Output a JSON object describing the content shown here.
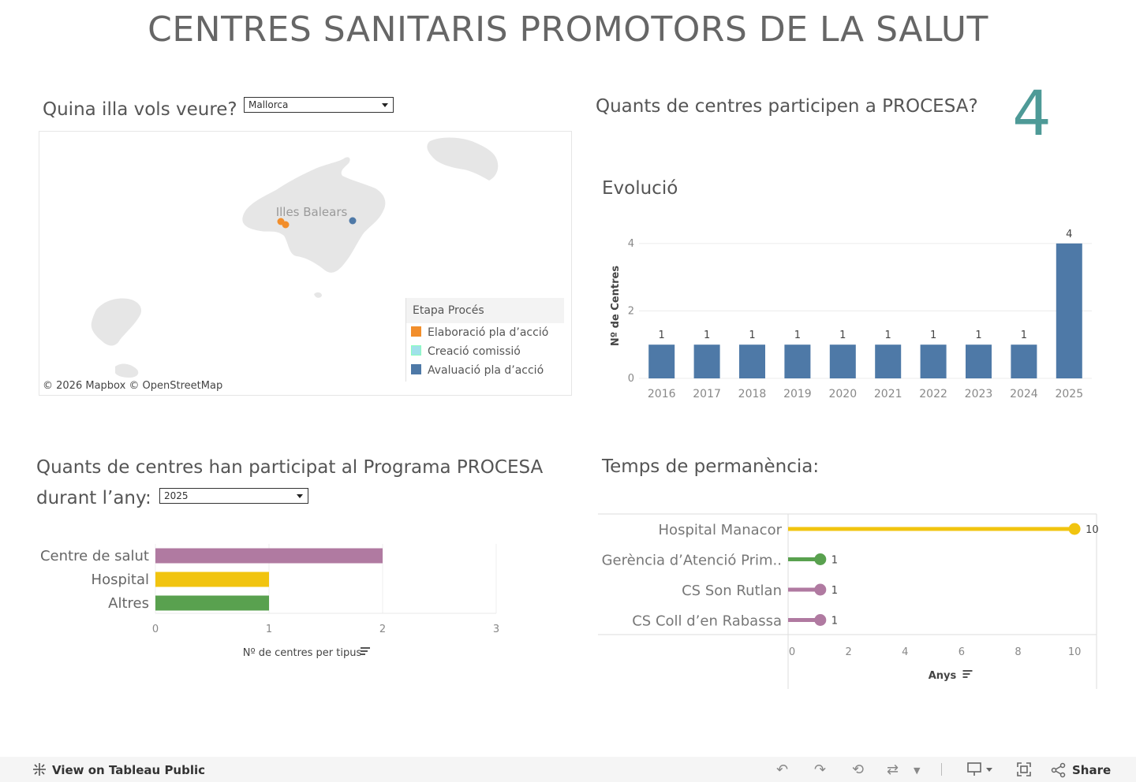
{
  "title": "CENTRES SANITARIS PROMOTORS DE LA SALUT",
  "island_filter": {
    "label": "Quina illa vols veure?",
    "selected": "Mallorca"
  },
  "map": {
    "place_label": "Illes Balears",
    "attribution": "© 2026 Mapbox  © OpenStreetMap",
    "legend": {
      "title": "Etapa Procés",
      "items": [
        {
          "label": "Elaboració pla d’acció",
          "color": "#f28e2b"
        },
        {
          "label": "Creació comissió",
          "color": "#a0e1ea"
        },
        {
          "label": "Avaluació pla d’acció",
          "color": "#4e79a7"
        }
      ]
    }
  },
  "count_kpi": {
    "question": "Quants de centres participen a PROCESA?",
    "value": "4",
    "color": "#4e9a97"
  },
  "evolucio": {
    "heading": "Evolució"
  },
  "participacio": {
    "heading_line1": "Quants de centres han participat al Programa PROCESA",
    "heading_line2": "durant l’any:",
    "year_selected": "2025"
  },
  "permanencia": {
    "heading": "Temps de permanència:"
  },
  "chart_data": [
    {
      "type": "bar",
      "title": "Evolució",
      "ylabel": "Nº de Centres",
      "xlabel": "",
      "categories": [
        "2016",
        "2017",
        "2018",
        "2019",
        "2020",
        "2021",
        "2022",
        "2023",
        "2024",
        "2025"
      ],
      "values": [
        1,
        1,
        1,
        1,
        1,
        1,
        1,
        1,
        1,
        4
      ],
      "y_ticks": [
        "0",
        "2",
        "4"
      ],
      "ylim": [
        0,
        4.3
      ],
      "color": "#4e79a7",
      "grid": true
    },
    {
      "type": "bar",
      "orientation": "horizontal",
      "categories": [
        "Centre de salut",
        "Hospital",
        "Altres"
      ],
      "values": [
        2,
        1,
        1
      ],
      "colors": [
        "#b07aa1",
        "#f1c40f",
        "#59a14f"
      ],
      "xlabel": "Nº de centres per tipus",
      "x_ticks": [
        "0",
        "1",
        "2",
        "3"
      ],
      "xlim": [
        0,
        3
      ],
      "grid": true
    },
    {
      "type": "bar",
      "style": "lollipop",
      "orientation": "horizontal",
      "categories": [
        "Hospital Manacor",
        "Gerència d’Atenció Prim..",
        "CS Son Rutlan",
        "CS Coll d’en Rabassa"
      ],
      "values": [
        10,
        1,
        1,
        1
      ],
      "colors": [
        "#f1c40f",
        "#59a14f",
        "#b07aa1",
        "#b07aa1"
      ],
      "xlabel": "Anys",
      "x_ticks": [
        "0",
        "2",
        "4",
        "6",
        "8",
        "10"
      ],
      "xlim": [
        0,
        10.5
      ]
    }
  ],
  "footer": {
    "view_link": "View on Tableau Public",
    "share_label": "Share"
  }
}
